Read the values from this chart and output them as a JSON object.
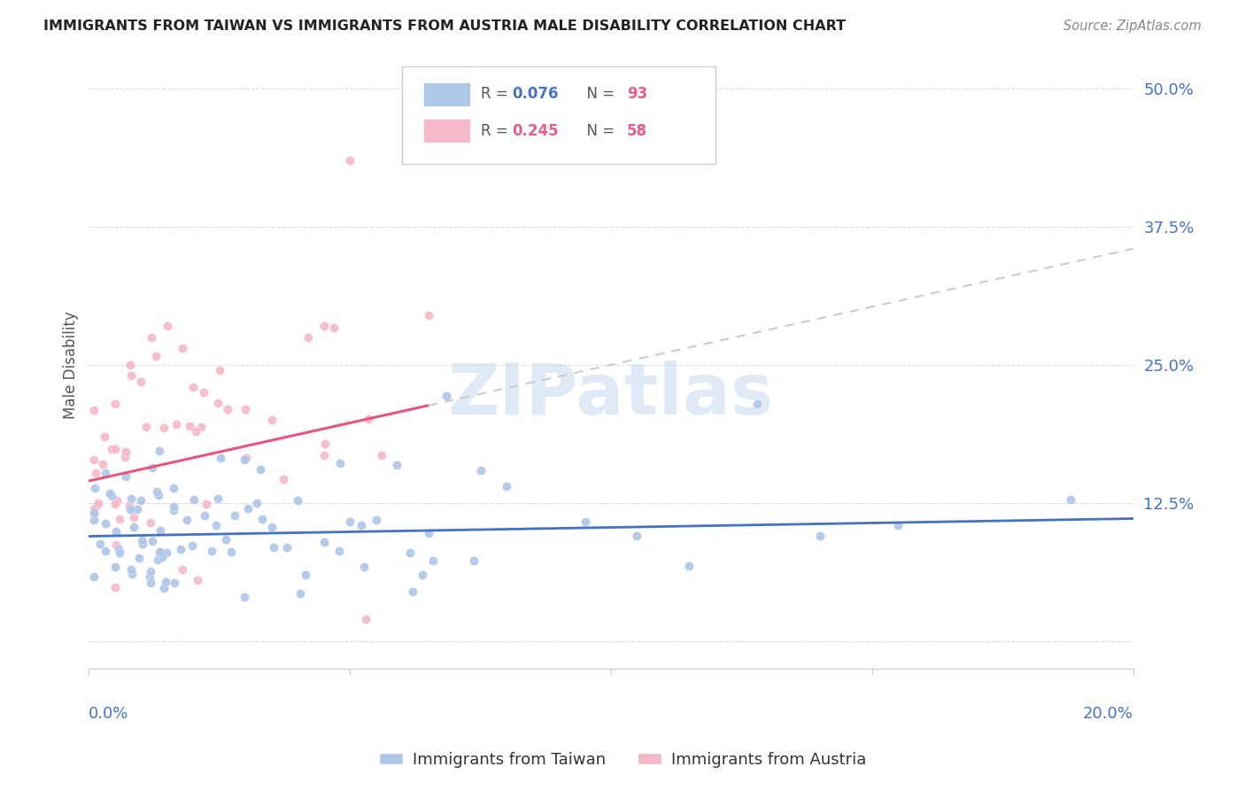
{
  "title": "IMMIGRANTS FROM TAIWAN VS IMMIGRANTS FROM AUSTRIA MALE DISABILITY CORRELATION CHART",
  "source": "Source: ZipAtlas.com",
  "ylabel": "Male Disability",
  "xlim": [
    0.0,
    0.2
  ],
  "ylim": [
    -0.025,
    0.525
  ],
  "yticks": [
    0.0,
    0.125,
    0.25,
    0.375,
    0.5
  ],
  "ytick_labels": [
    "",
    "12.5%",
    "25.0%",
    "37.5%",
    "50.0%"
  ],
  "taiwan_color": "#aec6e8",
  "austria_color": "#f4b8c8",
  "taiwan_line_color": "#4472c4",
  "austria_line_color": "#e8547a",
  "taiwan_R": 0.076,
  "taiwan_N": 93,
  "austria_R": 0.245,
  "austria_N": 58,
  "watermark_text": "ZIPatlas",
  "watermark_color": "#c8d8f0",
  "background_color": "#ffffff",
  "grid_color": "#dddddd",
  "tick_color": "#4472c4",
  "title_color": "#222222",
  "source_color": "#888888"
}
